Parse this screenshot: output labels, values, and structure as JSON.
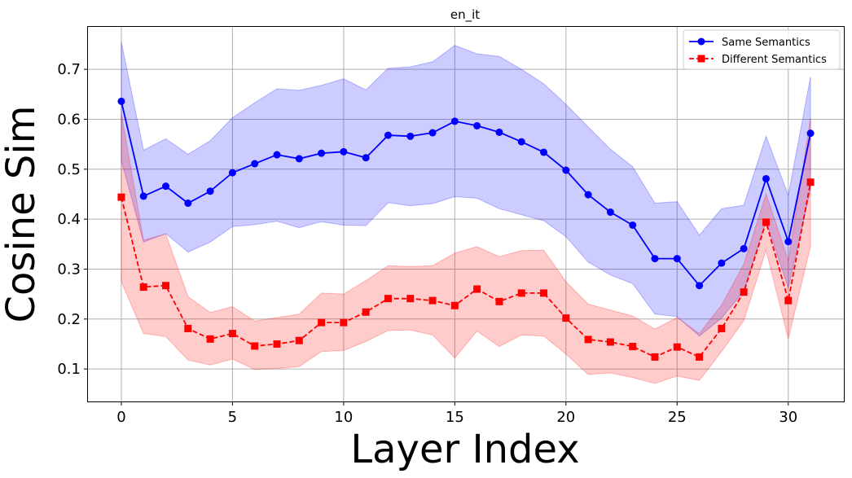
{
  "chart_data": {
    "type": "line",
    "title": "en_it",
    "xlabel": "Layer Index",
    "ylabel": "Cosine Sim",
    "xlim": [
      -1.5,
      32.5
    ],
    "ylim": [
      0.035,
      0.785
    ],
    "xticks": [
      0,
      5,
      10,
      15,
      20,
      25,
      30
    ],
    "yticks": [
      0.1,
      0.2,
      0.3,
      0.4,
      0.5,
      0.6,
      0.7
    ],
    "ytick_labels": [
      "0.1",
      "0.2",
      "0.3",
      "0.4",
      "0.5",
      "0.6",
      "0.7"
    ],
    "grid": true,
    "legend_position": "top-right",
    "series": [
      {
        "name": "Same Semantics",
        "color": "#0000ff",
        "band_color": "#0000ff",
        "marker": "circle",
        "linestyle": "solid",
        "x": [
          0,
          1,
          2,
          3,
          4,
          5,
          6,
          7,
          8,
          9,
          10,
          11,
          12,
          13,
          14,
          15,
          16,
          17,
          18,
          19,
          20,
          21,
          22,
          23,
          24,
          25,
          26,
          27,
          28,
          29,
          30,
          31
        ],
        "values": [
          0.636,
          0.446,
          0.466,
          0.432,
          0.456,
          0.493,
          0.511,
          0.529,
          0.521,
          0.532,
          0.535,
          0.523,
          0.568,
          0.566,
          0.573,
          0.596,
          0.587,
          0.574,
          0.555,
          0.534,
          0.498,
          0.449,
          0.414,
          0.388,
          0.321,
          0.321,
          0.267,
          0.312,
          0.341,
          0.481,
          0.355,
          0.572
        ],
        "upper": [
          0.755,
          0.538,
          0.561,
          0.53,
          0.557,
          0.603,
          0.633,
          0.661,
          0.658,
          0.668,
          0.681,
          0.659,
          0.702,
          0.705,
          0.715,
          0.748,
          0.731,
          0.726,
          0.7,
          0.671,
          0.63,
          0.585,
          0.54,
          0.505,
          0.432,
          0.435,
          0.368,
          0.421,
          0.428,
          0.566,
          0.448,
          0.685
        ],
        "lower": [
          0.518,
          0.354,
          0.371,
          0.334,
          0.354,
          0.385,
          0.389,
          0.396,
          0.383,
          0.395,
          0.388,
          0.387,
          0.433,
          0.427,
          0.431,
          0.445,
          0.442,
          0.421,
          0.409,
          0.397,
          0.365,
          0.314,
          0.288,
          0.271,
          0.21,
          0.205,
          0.166,
          0.202,
          0.256,
          0.397,
          0.262,
          0.459
        ]
      },
      {
        "name": "Different Semantics",
        "color": "#ff0000",
        "band_color": "#ff0000",
        "marker": "square",
        "linestyle": "dashed",
        "x": [
          0,
          1,
          2,
          3,
          4,
          5,
          6,
          7,
          8,
          9,
          10,
          11,
          12,
          13,
          14,
          15,
          16,
          17,
          18,
          19,
          20,
          21,
          22,
          23,
          24,
          25,
          26,
          27,
          28,
          29,
          30,
          31
        ],
        "values": [
          0.444,
          0.264,
          0.267,
          0.181,
          0.16,
          0.171,
          0.146,
          0.15,
          0.157,
          0.193,
          0.193,
          0.214,
          0.241,
          0.241,
          0.237,
          0.227,
          0.26,
          0.235,
          0.252,
          0.252,
          0.202,
          0.159,
          0.154,
          0.145,
          0.124,
          0.144,
          0.124,
          0.181,
          0.254,
          0.394,
          0.237,
          0.474
        ],
        "upper": [
          0.612,
          0.358,
          0.37,
          0.245,
          0.213,
          0.225,
          0.196,
          0.203,
          0.21,
          0.252,
          0.25,
          0.277,
          0.307,
          0.305,
          0.307,
          0.332,
          0.345,
          0.325,
          0.337,
          0.338,
          0.275,
          0.23,
          0.218,
          0.206,
          0.18,
          0.203,
          0.171,
          0.228,
          0.31,
          0.451,
          0.317,
          0.602
        ],
        "lower": [
          0.275,
          0.171,
          0.165,
          0.118,
          0.108,
          0.12,
          0.099,
          0.101,
          0.105,
          0.135,
          0.137,
          0.155,
          0.177,
          0.178,
          0.168,
          0.122,
          0.176,
          0.145,
          0.168,
          0.166,
          0.13,
          0.089,
          0.092,
          0.083,
          0.071,
          0.086,
          0.077,
          0.135,
          0.197,
          0.338,
          0.16,
          0.346
        ]
      }
    ]
  }
}
